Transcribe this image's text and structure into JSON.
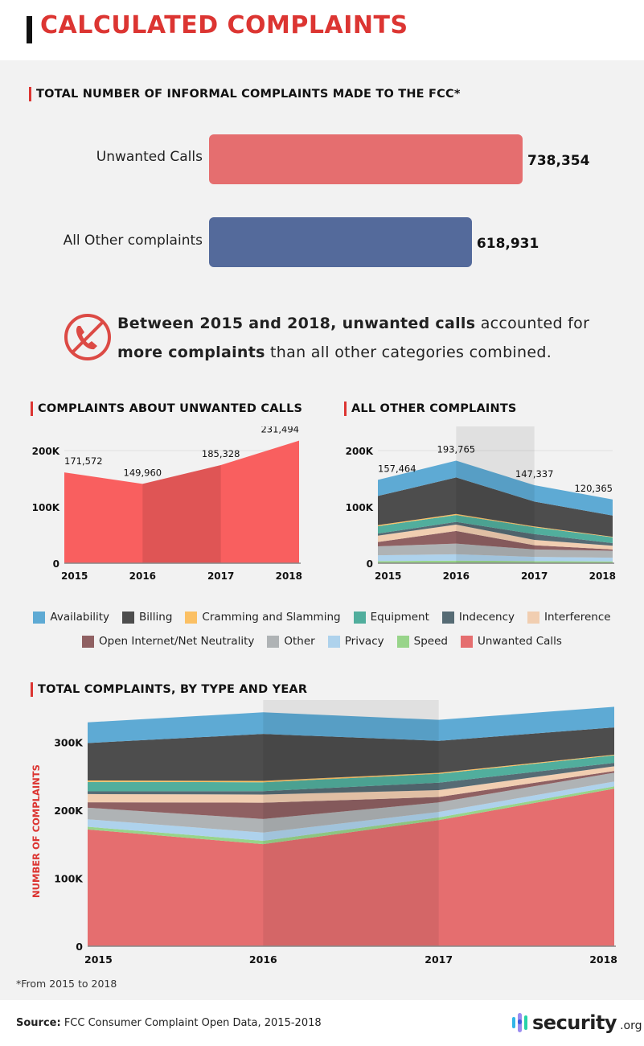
{
  "header": {
    "title": "CALCULATED COMPLAINTS"
  },
  "total_section": {
    "title": "TOTAL NUMBER OF INFORMAL COMPLAINTS MADE TO THE FCC*",
    "bars": [
      {
        "label": "Unwanted Calls",
        "value": 738354,
        "value_label": "738,354",
        "color": "#e56e6f"
      },
      {
        "label": "All Other complaints",
        "value": 618931,
        "value_label": "618,931",
        "color": "#546a9b"
      }
    ]
  },
  "callout": {
    "icon": "no-phone-icon",
    "parts": [
      {
        "text": "Between 2015 and 2018, unwanted calls",
        "bold": true
      },
      {
        "text": " accounted for ",
        "bold": false
      },
      {
        "text": "more complaints",
        "bold": true
      },
      {
        "text": " than all other categories combined.",
        "bold": false
      }
    ]
  },
  "legend": {
    "rows": [
      [
        {
          "label": "Availability",
          "color": "#5eaad4"
        },
        {
          "label": "Billing",
          "color": "#4d4d4d"
        },
        {
          "label": "Cramming and Slamming",
          "color": "#fbc064"
        },
        {
          "label": "Equipment",
          "color": "#51ae9d"
        },
        {
          "label": "Indecency",
          "color": "#566b74"
        },
        {
          "label": "Interference",
          "color": "#f1ceb1"
        }
      ],
      [
        {
          "label": "Open Internet/Net Neutrality",
          "color": "#8f6062"
        },
        {
          "label": "Other",
          "color": "#afb3b5"
        },
        {
          "label": "Privacy",
          "color": "#aed2ec"
        },
        {
          "label": "Speed",
          "color": "#98d48a"
        },
        {
          "label": "Unwanted Calls",
          "color": "#e56e6f"
        }
      ]
    ]
  },
  "chart_data": [
    {
      "type": "area",
      "title": "COMPLAINTS ABOUT UNWANTED CALLS",
      "categories": [
        "2015",
        "2016",
        "2017",
        "2018"
      ],
      "values": [
        171572,
        149960,
        185328,
        231494
      ],
      "data_labels": [
        "171,572",
        "149,960",
        "185,328",
        "231,494"
      ],
      "yticks": [
        "0",
        "100K",
        "200K"
      ],
      "ylim": [
        0,
        200000
      ],
      "color": "#f95f5f",
      "grid": true
    },
    {
      "type": "area",
      "stacked": true,
      "title": "ALL OTHER COMPLAINTS",
      "categories": [
        "2015",
        "2016",
        "2017",
        "2018"
      ],
      "totals": [
        157464,
        193765,
        147337,
        120365
      ],
      "data_labels": [
        "157,464",
        "193,765",
        "147,337",
        "120,365"
      ],
      "yticks": [
        "0",
        "100K",
        "200K"
      ],
      "ylim": [
        0,
        200000
      ],
      "series": [
        {
          "name": "Speed",
          "values": [
            4000,
            5000,
            4000,
            3500
          ]
        },
        {
          "name": "Privacy",
          "values": [
            11000,
            12000,
            8000,
            7000
          ]
        },
        {
          "name": "Other",
          "values": [
            17000,
            20000,
            14000,
            13000
          ]
        },
        {
          "name": "Open Internet/Net Neutrality",
          "values": [
            8000,
            24000,
            8000,
            2500
          ]
        },
        {
          "name": "Interference",
          "values": [
            12000,
            12000,
            10000,
            7000
          ]
        },
        {
          "name": "Indecency",
          "values": [
            4000,
            5000,
            11000,
            5000
          ]
        },
        {
          "name": "Equipment",
          "values": [
            14000,
            13000,
            13000,
            11000
          ]
        },
        {
          "name": "Cramming and Slamming",
          "values": [
            2000,
            2000,
            1500,
            1000
          ]
        },
        {
          "name": "Billing",
          "values": [
            55000,
            69000,
            47000,
            40000
          ]
        },
        {
          "name": "Availability",
          "values": [
            30464,
            31765,
            30837,
            30365
          ]
        }
      ],
      "grid": true
    },
    {
      "type": "area",
      "stacked": true,
      "title": "TOTAL COMPLAINTS, BY TYPE AND YEAR",
      "ylabel": "NUMBER OF COMPLAINTS",
      "categories": [
        "2015",
        "2016",
        "2017",
        "2018"
      ],
      "yticks": [
        "0",
        "100K",
        "200K",
        "300K"
      ],
      "ylim": [
        0,
        350000
      ],
      "series": [
        {
          "name": "Unwanted Calls",
          "values": [
            171572,
            149960,
            185328,
            231494
          ]
        },
        {
          "name": "Speed",
          "values": [
            4000,
            5000,
            4000,
            3500
          ]
        },
        {
          "name": "Privacy",
          "values": [
            11000,
            12000,
            8000,
            7000
          ]
        },
        {
          "name": "Other",
          "values": [
            17000,
            20000,
            14000,
            13000
          ]
        },
        {
          "name": "Open Internet/Net Neutrality",
          "values": [
            8000,
            24000,
            8000,
            2500
          ]
        },
        {
          "name": "Interference",
          "values": [
            12000,
            12000,
            10000,
            7000
          ]
        },
        {
          "name": "Indecency",
          "values": [
            4000,
            5000,
            11000,
            5000
          ]
        },
        {
          "name": "Equipment",
          "values": [
            14000,
            13000,
            13000,
            11000
          ]
        },
        {
          "name": "Cramming and Slamming",
          "values": [
            2000,
            2000,
            1500,
            1000
          ]
        },
        {
          "name": "Billing",
          "values": [
            55000,
            69000,
            47000,
            40000
          ]
        },
        {
          "name": "Availability",
          "values": [
            30464,
            31765,
            30837,
            30365
          ]
        }
      ],
      "grid": true
    }
  ],
  "footnote": "*From 2015 to 2018",
  "footer": {
    "source_label": "Source:",
    "source_text": " FCC Consumer Complaint Open Data, 2015-2018",
    "logo_word": "security",
    "logo_suffix": ".org"
  }
}
